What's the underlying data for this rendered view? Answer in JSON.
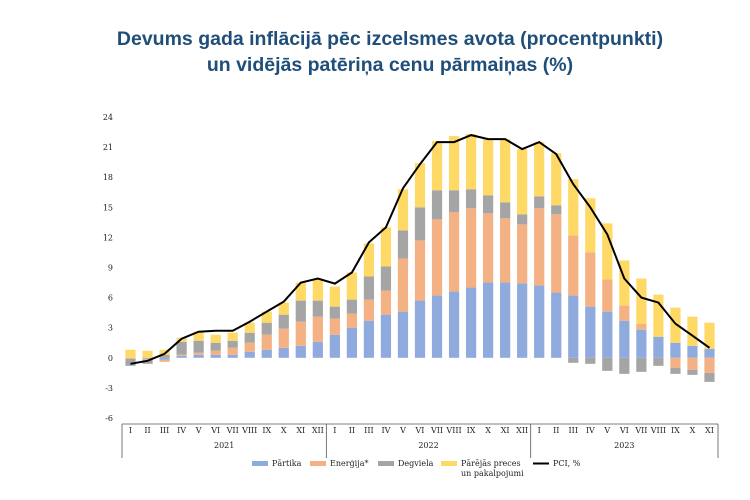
{
  "title_line1": "Devums gada inflācijā pēc izcelsmes avota (procentpunkti)",
  "title_line2": "un vidējās patēriņa cenu pārmaiņas (%)",
  "chart_data": {
    "type": "bar",
    "stacked": true,
    "ylim": [
      -6,
      24
    ],
    "yticks": [
      -6,
      -3,
      0,
      3,
      6,
      9,
      12,
      15,
      18,
      21,
      24
    ],
    "grid": false,
    "legend_position": "bottom",
    "categories": [
      "I",
      "II",
      "III",
      "IV",
      "V",
      "VI",
      "VII",
      "VIII",
      "IX",
      "X",
      "XI",
      "XII",
      "I",
      "II",
      "III",
      "IV",
      "V",
      "VI",
      "VII",
      "VIII",
      "IX",
      "X",
      "XI",
      "XII",
      "I",
      "II",
      "III",
      "IV",
      "V",
      "VI",
      "VII",
      "VIII",
      "IX",
      "X",
      "XI"
    ],
    "years": [
      {
        "label": "2021",
        "start": 0,
        "end": 12
      },
      {
        "label": "2022",
        "start": 12,
        "end": 24
      },
      {
        "label": "2023",
        "start": 24,
        "end": 35
      }
    ],
    "series": [
      {
        "name": "Pārtika",
        "color": "#8faadc",
        "type": "bar",
        "values": [
          0,
          -0.1,
          -0.2,
          0.2,
          0.3,
          0.3,
          0.3,
          0.6,
          0.8,
          1.0,
          1.2,
          1.6,
          2.3,
          3.0,
          3.7,
          4.3,
          4.6,
          5.7,
          6.2,
          6.6,
          7.0,
          7.5,
          7.5,
          7.4,
          7.2,
          6.5,
          6.2,
          5.1,
          4.6,
          3.7,
          2.8,
          2.1,
          1.5,
          1.2,
          0.9
        ]
      },
      {
        "name": "Enerģija*",
        "color": "#f4b183",
        "type": "bar",
        "values": [
          -0.1,
          -0.1,
          -0.2,
          0.1,
          0.2,
          0.4,
          0.7,
          0.9,
          1.5,
          1.9,
          2.4,
          2.5,
          1.6,
          1.4,
          2.1,
          2.4,
          5.3,
          6.0,
          7.6,
          7.9,
          7.9,
          6.9,
          6.4,
          5.9,
          7.7,
          7.8,
          6.0,
          5.4,
          3.2,
          1.5,
          0.6,
          0,
          -1.0,
          -1.2,
          -1.5
        ]
      },
      {
        "name": "Degviela",
        "color": "#a5a5a5",
        "type": "bar",
        "values": [
          -0.7,
          -0.4,
          0.3,
          1.3,
          1.2,
          0.8,
          0.7,
          1.0,
          1.2,
          1.4,
          2.1,
          1.6,
          1.2,
          1.4,
          2.3,
          2.4,
          2.8,
          3.3,
          2.9,
          2.2,
          1.9,
          1.8,
          1.6,
          1.0,
          1.2,
          0.9,
          -0.5,
          -0.6,
          -1.3,
          -1.6,
          -1.4,
          -0.8,
          -0.6,
          -0.5,
          -0.9
        ]
      },
      {
        "name": "Pārējās preces un pakalpojumi",
        "color": "#ffd966",
        "type": "bar",
        "values": [
          0.8,
          0.7,
          0.5,
          0.4,
          0.9,
          0.8,
          0.8,
          1.0,
          1.1,
          1.2,
          1.8,
          2.2,
          2.0,
          2.7,
          3.3,
          3.9,
          4.1,
          4.4,
          4.9,
          5.4,
          5.5,
          5.6,
          6.3,
          6.5,
          5.4,
          5.2,
          5.6,
          5.4,
          5.6,
          4.5,
          4.5,
          4.2,
          3.5,
          2.9,
          2.6
        ]
      },
      {
        "name": "PCI, %",
        "color": "#000000",
        "type": "line",
        "values": [
          -0.6,
          -0.3,
          0.4,
          1.9,
          2.6,
          2.7,
          2.7,
          3.6,
          4.6,
          5.6,
          7.5,
          7.9,
          7.4,
          8.5,
          11.5,
          13.0,
          16.9,
          19.3,
          21.5,
          21.5,
          22.2,
          21.8,
          21.8,
          20.8,
          21.5,
          20.3,
          17.3,
          15.0,
          12.3,
          7.9,
          6.0,
          5.5,
          3.4,
          2.2,
          1.0
        ]
      }
    ]
  }
}
